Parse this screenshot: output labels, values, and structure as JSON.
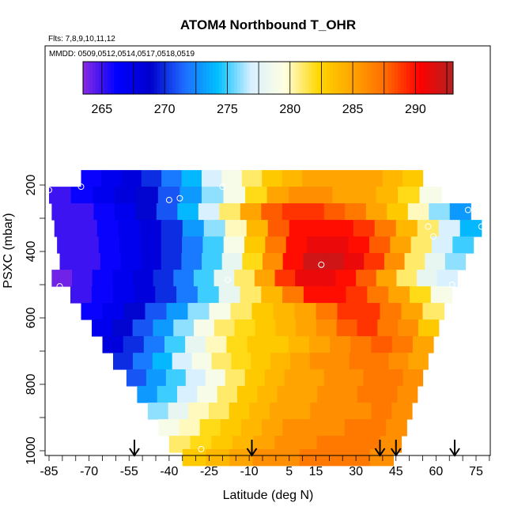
{
  "chart_data": {
    "type": "heatmap",
    "title": "ATOM4 Northbound T_OHR",
    "subtitle_flights": "Flts: 7,8,9,10,11,12",
    "subtitle_dates": "MMDD: 0509,0512,0514,0517,0518,0519",
    "xlabel": "Latitude (deg N)",
    "ylabel": "PSXC (mbar)",
    "x_ticks": [
      "-85",
      "-70",
      "-55",
      "-40",
      "-25",
      "-10",
      "5",
      "15",
      "30",
      "45",
      "60",
      "75"
    ],
    "y_ticks": [
      "200",
      "400",
      "600",
      "800",
      "1000"
    ],
    "colorbar": {
      "min": 263.5,
      "max": 293,
      "tick_labels": [
        "265",
        "270",
        "275",
        "280",
        "285",
        "290"
      ],
      "colors": [
        "#8a2be2",
        "#0000ff",
        "#0000cc",
        "#1e6bff",
        "#00bfff",
        "#d8f0ff",
        "#ffffe0",
        "#ffd700",
        "#ffa500",
        "#ff6a00",
        "#ff0000",
        "#b22222"
      ]
    },
    "arrow_latitudes": [
      -53,
      -9,
      39,
      45,
      67
    ],
    "rows": [
      {
        "p": 180,
        "lat_min": -73,
        "lat_max": 55,
        "v": [
          266,
          267,
          268,
          270,
          272,
          274,
          277,
          279,
          281,
          283,
          284,
          285,
          285,
          285,
          285,
          284,
          283
        ]
      },
      {
        "p": 230,
        "lat_min": -85,
        "lat_max": 62,
        "v": [
          265,
          266,
          267,
          268,
          269,
          271,
          273,
          276,
          279,
          282,
          285,
          286,
          286,
          285,
          285,
          284,
          282,
          279
        ]
      },
      {
        "p": 280,
        "lat_min": -84,
        "lat_max": 73,
        "v": [
          265,
          265,
          266,
          267,
          269,
          271,
          274,
          277,
          281,
          285,
          288,
          289,
          289,
          288,
          287,
          285,
          283,
          280,
          276,
          273
        ]
      },
      {
        "p": 330,
        "lat_min": -83,
        "lat_max": 77,
        "v": [
          265,
          265,
          266,
          267,
          268,
          270,
          273,
          276,
          280,
          284,
          288,
          290,
          290,
          290,
          289,
          287,
          284,
          281,
          277,
          274
        ]
      },
      {
        "p": 380,
        "lat_min": -82,
        "lat_max": 74,
        "v": [
          265,
          265,
          266,
          267,
          268,
          270,
          272,
          275,
          279,
          283,
          287,
          290,
          291,
          291,
          290,
          288,
          285,
          281,
          277,
          275
        ]
      },
      {
        "p": 430,
        "lat_min": -81,
        "lat_max": 71,
        "v": [
          265,
          265,
          266,
          267,
          268,
          270,
          272,
          275,
          278,
          282,
          286,
          290,
          292,
          292,
          291,
          289,
          286,
          281,
          278,
          276
        ]
      },
      {
        "p": 480,
        "lat_min": -84,
        "lat_max": 68,
        "v": [
          264,
          265,
          266,
          267,
          268,
          270,
          272,
          275,
          278,
          281,
          285,
          289,
          291,
          291,
          290,
          288,
          285,
          281,
          278,
          277
        ]
      },
      {
        "p": 530,
        "lat_min": -77,
        "lat_max": 66,
        "v": [
          265,
          266,
          267,
          268,
          270,
          272,
          275,
          278,
          281,
          284,
          287,
          290,
          290,
          289,
          287,
          285,
          282,
          279
        ]
      },
      {
        "p": 580,
        "lat_min": -73,
        "lat_max": 63,
        "v": [
          266,
          267,
          269,
          271,
          273,
          276,
          279,
          281,
          283,
          284,
          285,
          287,
          289,
          289,
          287,
          285,
          281
        ]
      },
      {
        "p": 630,
        "lat_min": -69,
        "lat_max": 61,
        "v": [
          267,
          269,
          271,
          273,
          276,
          279,
          281,
          282,
          283,
          284,
          285,
          286,
          288,
          289,
          287,
          286,
          283
        ]
      },
      {
        "p": 680,
        "lat_min": -65,
        "lat_max": 59,
        "v": [
          268,
          270,
          272,
          275,
          278,
          280,
          282,
          283,
          283,
          284,
          285,
          286,
          287,
          288,
          287,
          285
        ]
      },
      {
        "p": 730,
        "lat_min": -61,
        "lat_max": 57,
        "v": [
          270,
          272,
          274,
          277,
          279,
          281,
          282,
          283,
          284,
          285,
          286,
          286,
          287,
          287,
          286,
          285
        ]
      },
      {
        "p": 780,
        "lat_min": -56,
        "lat_max": 55,
        "v": [
          271,
          273,
          275,
          277,
          279,
          281,
          283,
          284,
          285,
          285,
          286,
          286,
          287,
          287,
          286
        ]
      },
      {
        "p": 830,
        "lat_min": -52,
        "lat_max": 53,
        "v": [
          273,
          275,
          277,
          279,
          281,
          283,
          284,
          285,
          285,
          286,
          286,
          287,
          287,
          286
        ]
      },
      {
        "p": 880,
        "lat_min": -48,
        "lat_max": 51,
        "v": [
          276,
          278,
          280,
          281,
          283,
          284,
          285,
          285,
          286,
          286,
          286,
          287,
          286
        ]
      },
      {
        "p": 930,
        "lat_min": -44,
        "lat_max": 49,
        "v": [
          279,
          280,
          282,
          283,
          284,
          285,
          286,
          286,
          286,
          287,
          287,
          286
        ]
      },
      {
        "p": 980,
        "lat_min": -40,
        "lat_max": 47,
        "v": [
          281,
          282,
          283,
          284,
          285,
          286,
          286,
          287,
          287,
          287,
          286
        ]
      },
      {
        "p": 1020,
        "lat_min": -35,
        "lat_max": 44,
        "v": [
          283,
          284,
          285,
          286,
          286,
          287,
          287,
          287,
          286
        ]
      }
    ],
    "circles": [
      {
        "lat": -85,
        "p": 215
      },
      {
        "lat": -73,
        "p": 205
      },
      {
        "lat": -40,
        "p": 245
      },
      {
        "lat": -36,
        "p": 240
      },
      {
        "lat": -20,
        "p": 205
      },
      {
        "lat": 17,
        "p": 440
      },
      {
        "lat": -18,
        "p": 485
      },
      {
        "lat": -81,
        "p": 505
      },
      {
        "lat": 57,
        "p": 325
      },
      {
        "lat": 59,
        "p": 355
      },
      {
        "lat": 72,
        "p": 275
      },
      {
        "lat": 77,
        "p": 325
      },
      {
        "lat": 66,
        "p": 500
      },
      {
        "lat": 56,
        "p": 830
      },
      {
        "lat": -28,
        "p": 995
      }
    ]
  }
}
